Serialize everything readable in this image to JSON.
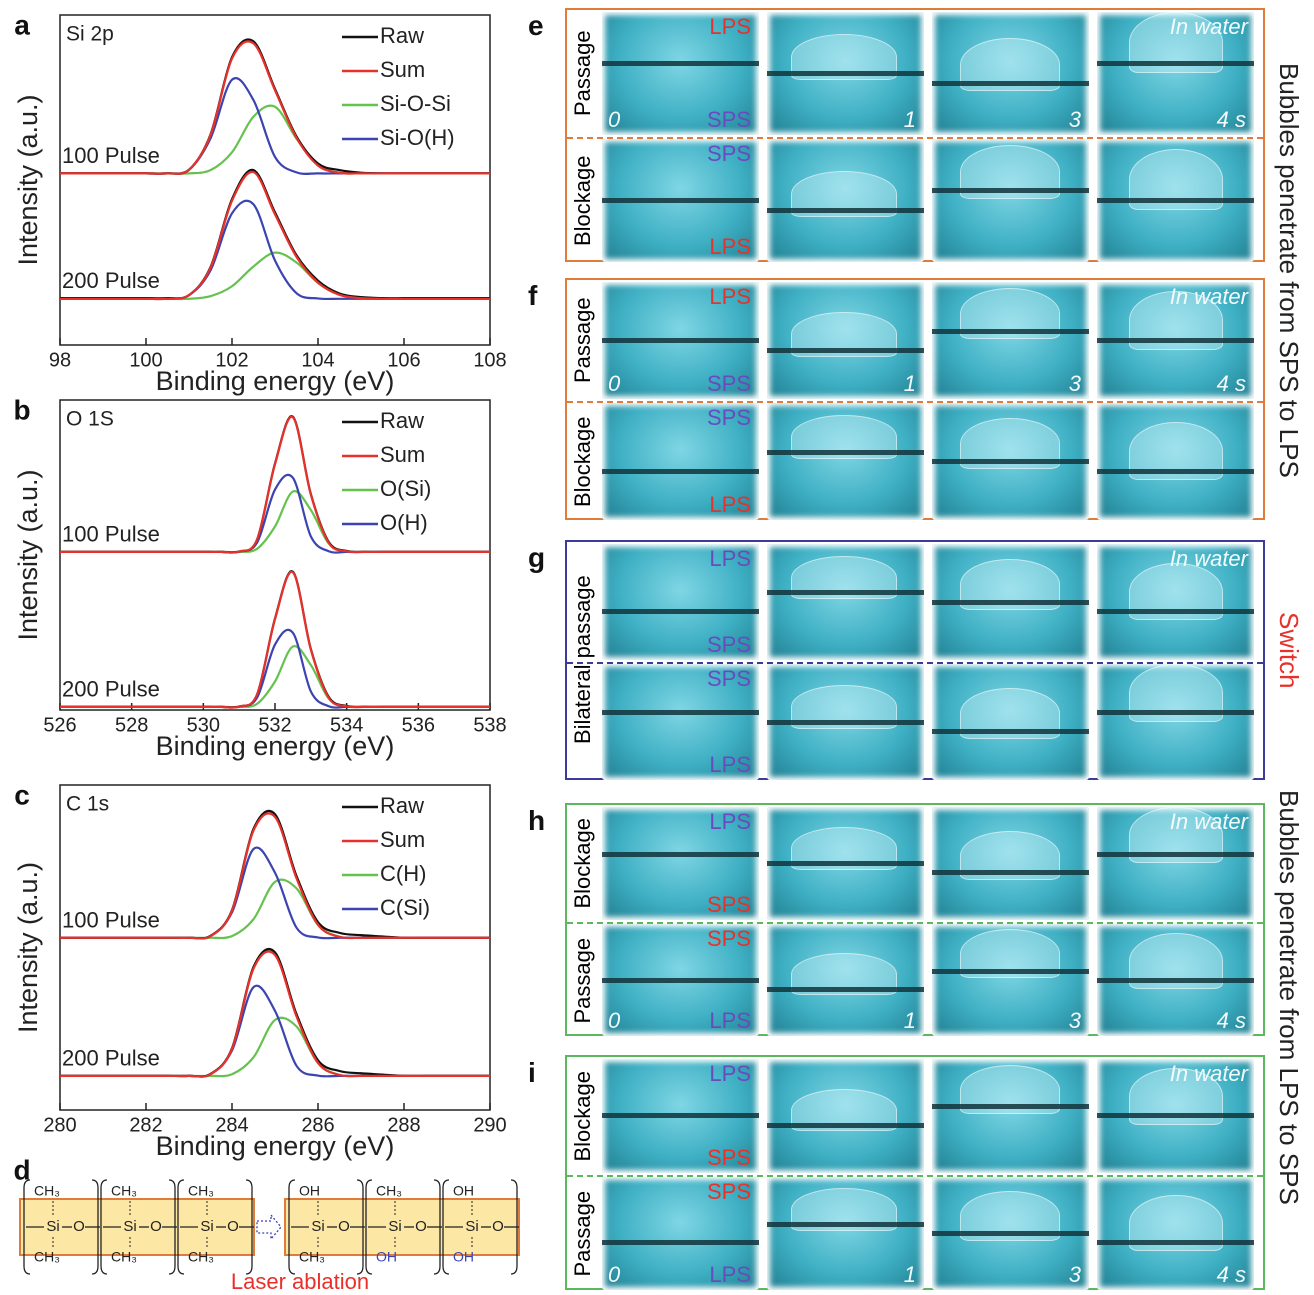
{
  "chart_data": [
    {
      "type": "line",
      "panel_label": "a",
      "inset_label": "Si 2p",
      "xlabel": "Binding energy (eV)",
      "ylabel": "Intensity (a.u.)",
      "xlim": [
        98,
        108
      ],
      "xticks": [
        98,
        100,
        102,
        104,
        106,
        108
      ],
      "ylim": [
        0,
        10
      ],
      "x": [
        98,
        98.5,
        99,
        99.5,
        100,
        100.5,
        101,
        101.5,
        102,
        102.5,
        103,
        103.5,
        104,
        104.5,
        105,
        105.5,
        106,
        106.5,
        107,
        107.5,
        108
      ],
      "series": [
        {
          "name": "Raw",
          "color": "#111111"
        },
        {
          "name": "Sum",
          "color": "#e8312a"
        },
        {
          "name": "Si-O-Si",
          "color": "#66c24f"
        },
        {
          "name": "Si-O(H)",
          "color": "#3b44b0"
        }
      ],
      "spectra": [
        {
          "label": "100 Pulse",
          "values": [
            [
              5.2,
              5.2,
              5.2,
              5.2,
              5.2,
              5.2,
              5.31,
              6.38,
              8.72,
              9.2,
              7.76,
              6.32,
              5.5,
              5.3,
              5.22,
              5.2,
              5.2,
              5.2,
              5.2,
              5.2,
              5.2
            ],
            [
              5.2,
              5.2,
              5.2,
              5.2,
              5.2,
              5.2,
              5.31,
              6.36,
              8.68,
              9.14,
              7.72,
              6.28,
              5.44,
              5.22,
              5.2,
              5.2,
              5.2,
              5.2,
              5.2,
              5.2,
              5.2
            ],
            [
              5.2,
              5.2,
              5.2,
              5.2,
              5.2,
              5.2,
              5.2,
              5.3,
              5.84,
              6.92,
              7.22,
              6.25,
              5.44,
              5.22,
              5.2,
              5.2,
              5.2,
              5.2,
              5.2,
              5.2,
              5.2
            ],
            [
              5.2,
              5.2,
              5.2,
              5.2,
              5.2,
              5.2,
              5.31,
              6.26,
              8.04,
              7.42,
              5.7,
              5.23,
              5.2,
              5.2,
              5.2,
              5.2,
              5.2,
              5.2,
              5.2,
              5.2,
              5.2
            ]
          ]
        },
        {
          "label": "200 Pulse",
          "values": [
            [
              1.42,
              1.42,
              1.42,
              1.42,
              1.42,
              1.42,
              1.51,
              2.36,
              4.42,
              5.3,
              4.02,
              2.72,
              1.95,
              1.56,
              1.45,
              1.42,
              1.42,
              1.42,
              1.42,
              1.42,
              1.42
            ],
            [
              1.4,
              1.4,
              1.4,
              1.4,
              1.4,
              1.4,
              1.51,
              2.34,
              4.37,
              5.24,
              3.96,
              2.67,
              1.89,
              1.52,
              1.42,
              1.4,
              1.4,
              1.4,
              1.4,
              1.4,
              1.4
            ],
            [
              1.4,
              1.4,
              1.4,
              1.4,
              1.4,
              1.4,
              1.4,
              1.48,
              1.78,
              2.38,
              2.8,
              2.5,
              1.88,
              1.52,
              1.42,
              1.4,
              1.4,
              1.4,
              1.4,
              1.4,
              1.4
            ],
            [
              1.4,
              1.4,
              1.4,
              1.4,
              1.4,
              1.4,
              1.51,
              2.26,
              3.99,
              4.26,
              2.56,
              1.57,
              1.41,
              1.4,
              1.4,
              1.4,
              1.4,
              1.4,
              1.4,
              1.4,
              1.4
            ]
          ]
        }
      ]
    },
    {
      "type": "line",
      "panel_label": "b",
      "inset_label": "O 1S",
      "xlabel": "Binding energy (eV)",
      "ylabel": "Intensity (a.u.)",
      "xlim": [
        526,
        538
      ],
      "xticks": [
        526,
        528,
        530,
        532,
        534,
        536,
        538
      ],
      "ylim": [
        0,
        10
      ],
      "x": [
        526,
        526.5,
        527,
        527.5,
        528,
        528.5,
        529,
        529.5,
        530,
        530.5,
        531,
        531.5,
        532,
        532.5,
        533,
        533.5,
        534,
        534.5,
        535,
        535.5,
        536,
        536.5,
        537,
        537.5,
        538
      ],
      "series": [
        {
          "name": "Raw",
          "color": "#111111"
        },
        {
          "name": "Sum",
          "color": "#e8312a"
        },
        {
          "name": "O(Si)",
          "color": "#66c24f"
        },
        {
          "name": "O(H)",
          "color": "#3b44b0"
        }
      ],
      "spectra": [
        {
          "label": "100 Pulse",
          "values": [
            [
              5.1,
              5.1,
              5.1,
              5.1,
              5.1,
              5.1,
              5.1,
              5.1,
              5.1,
              5.1,
              5.11,
              5.5,
              7.95,
              9.46,
              6.97,
              5.42,
              5.13,
              5.1,
              5.1,
              5.1,
              5.1,
              5.1,
              5.1,
              5.1,
              5.1
            ],
            [
              5.1,
              5.1,
              5.1,
              5.1,
              5.1,
              5.1,
              5.1,
              5.1,
              5.1,
              5.1,
              5.11,
              5.5,
              7.93,
              9.44,
              6.95,
              5.39,
              5.12,
              5.1,
              5.1,
              5.1,
              5.1,
              5.1,
              5.1,
              5.1,
              5.1
            ],
            [
              5.1,
              5.1,
              5.1,
              5.1,
              5.1,
              5.1,
              5.1,
              5.1,
              5.1,
              5.1,
              5.1,
              5.2,
              5.92,
              7.05,
              6.45,
              5.37,
              5.12,
              5.1,
              5.1,
              5.1,
              5.1,
              5.1,
              5.1,
              5.1,
              5.1
            ],
            [
              5.1,
              5.1,
              5.1,
              5.1,
              5.1,
              5.1,
              5.1,
              5.1,
              5.1,
              5.1,
              5.11,
              5.4,
              7.11,
              7.49,
              5.6,
              5.12,
              5.1,
              5.1,
              5.1,
              5.1,
              5.1,
              5.1,
              5.1,
              5.1,
              5.1
            ]
          ]
        },
        {
          "label": "200 Pulse",
          "values": [
            [
              0.1,
              0.1,
              0.1,
              0.1,
              0.1,
              0.1,
              0.1,
              0.1,
              0.1,
              0.1,
              0.11,
              0.5,
              2.95,
              4.46,
              1.97,
              0.42,
              0.13,
              0.1,
              0.1,
              0.1,
              0.1,
              0.1,
              0.1,
              0.1,
              0.1
            ],
            [
              0.1,
              0.1,
              0.1,
              0.1,
              0.1,
              0.1,
              0.1,
              0.1,
              0.1,
              0.1,
              0.11,
              0.5,
              2.93,
              4.44,
              1.95,
              0.39,
              0.12,
              0.1,
              0.1,
              0.1,
              0.1,
              0.1,
              0.1,
              0.1,
              0.1
            ],
            [
              0.1,
              0.1,
              0.1,
              0.1,
              0.1,
              0.1,
              0.1,
              0.1,
              0.1,
              0.1,
              0.1,
              0.2,
              0.92,
              2.05,
              1.45,
              0.37,
              0.12,
              0.1,
              0.1,
              0.1,
              0.1,
              0.1,
              0.1,
              0.1,
              0.1
            ],
            [
              0.1,
              0.1,
              0.1,
              0.1,
              0.1,
              0.1,
              0.1,
              0.1,
              0.1,
              0.1,
              0.11,
              0.4,
              2.11,
              2.49,
              0.6,
              0.12,
              0.1,
              0.1,
              0.1,
              0.1,
              0.1,
              0.1,
              0.1,
              0.1,
              0.1
            ]
          ]
        }
      ]
    },
    {
      "type": "line",
      "panel_label": "c",
      "inset_label": "C 1s",
      "xlabel": "Binding energy (eV)",
      "ylabel": "Intensity (a.u.)",
      "xlim": [
        280,
        290
      ],
      "xticks": [
        280,
        282,
        284,
        286,
        288,
        290
      ],
      "ylim": [
        0,
        10
      ],
      "x": [
        280,
        280.5,
        281,
        281.5,
        282,
        282.5,
        283,
        283.5,
        284,
        284.5,
        285,
        285.5,
        286,
        286.5,
        287,
        287.5,
        288,
        288.5,
        289,
        289.5,
        290
      ],
      "series": [
        {
          "name": "Raw",
          "color": "#111111"
        },
        {
          "name": "Sum",
          "color": "#e8312a"
        },
        {
          "name": "C(H)",
          "color": "#66c24f"
        },
        {
          "name": "C(Si)",
          "color": "#3b44b0"
        }
      ],
      "spectra": [
        {
          "label": "100 Pulse",
          "values": [
            [
              5.3,
              5.3,
              5.3,
              5.3,
              5.3,
              5.3,
              5.3,
              5.36,
              6.15,
              8.65,
              9.1,
              7.2,
              5.78,
              5.45,
              5.38,
              5.34,
              5.3,
              5.3,
              5.3,
              5.3,
              5.3
            ],
            [
              5.3,
              5.3,
              5.3,
              5.3,
              5.3,
              5.3,
              5.3,
              5.35,
              6.13,
              8.6,
              9.02,
              7.13,
              5.7,
              5.33,
              5.3,
              5.3,
              5.3,
              5.3,
              5.3,
              5.3,
              5.3
            ],
            [
              5.3,
              5.3,
              5.3,
              5.3,
              5.3,
              5.3,
              5.3,
              5.3,
              5.35,
              5.87,
              7.02,
              6.82,
              5.69,
              5.33,
              5.3,
              5.3,
              5.3,
              5.3,
              5.3,
              5.3,
              5.3
            ],
            [
              5.3,
              5.3,
              5.3,
              5.3,
              5.3,
              5.3,
              5.3,
              5.35,
              6.08,
              8.03,
              7.3,
              5.61,
              5.31,
              5.3,
              5.3,
              5.3,
              5.3,
              5.3,
              5.3,
              5.3,
              5.3
            ]
          ]
        },
        {
          "label": "200 Pulse",
          "values": [
            [
              1.05,
              1.05,
              1.05,
              1.05,
              1.05,
              1.05,
              1.05,
              1.11,
              1.9,
              4.4,
              4.85,
              2.95,
              1.53,
              1.2,
              1.13,
              1.09,
              1.05,
              1.05,
              1.05,
              1.05,
              1.05
            ],
            [
              1.05,
              1.05,
              1.05,
              1.05,
              1.05,
              1.05,
              1.05,
              1.1,
              1.88,
              4.35,
              4.77,
              2.88,
              1.45,
              1.08,
              1.05,
              1.05,
              1.05,
              1.05,
              1.05,
              1.05,
              1.05
            ],
            [
              1.05,
              1.05,
              1.05,
              1.05,
              1.05,
              1.05,
              1.05,
              1.05,
              1.1,
              1.62,
              2.77,
              2.57,
              1.44,
              1.08,
              1.05,
              1.05,
              1.05,
              1.05,
              1.05,
              1.05,
              1.05
            ],
            [
              1.05,
              1.05,
              1.05,
              1.05,
              1.05,
              1.05,
              1.05,
              1.1,
              1.83,
              3.78,
              3.05,
              1.36,
              1.06,
              1.05,
              1.05,
              1.05,
              1.05,
              1.05,
              1.05,
              1.05,
              1.05
            ]
          ]
        }
      ]
    }
  ],
  "structure": {
    "label": "d",
    "caption": "Laser ablation",
    "before": [
      {
        "top": {
          "text": "CH₃",
          "color": "#222222"
        },
        "atom": "Si",
        "link": "O",
        "bottom": {
          "text": "CH₃",
          "color": "#222222"
        }
      },
      {
        "top": {
          "text": "CH₃",
          "color": "#222222"
        },
        "atom": "Si",
        "link": "O",
        "bottom": {
          "text": "CH₃",
          "color": "#222222"
        }
      },
      {
        "top": {
          "text": "CH₃",
          "color": "#222222"
        },
        "atom": "Si",
        "link": "O",
        "bottom": {
          "text": "CH₃",
          "color": "#222222"
        }
      }
    ],
    "after": [
      {
        "top": {
          "text": "OH",
          "color": "#222222"
        },
        "atom": "Si",
        "link": "O",
        "bottom": {
          "text": "CH₃",
          "color": "#222222"
        }
      },
      {
        "top": {
          "text": "CH₃",
          "color": "#222222"
        },
        "atom": "Si",
        "link": "O",
        "bottom": {
          "text": "OH",
          "color": "#3b44b0"
        }
      },
      {
        "top": {
          "text": "OH",
          "color": "#222222"
        },
        "atom": "Si",
        "link": "O",
        "bottom": {
          "text": "OH",
          "color": "#3b44b0"
        }
      }
    ]
  },
  "panels": [
    {
      "label": "e",
      "color": "#e07b39",
      "water": "In water",
      "rows": [
        {
          "side": "Passage",
          "top": {
            "text": "LPS",
            "color": "#e8312a"
          },
          "bottom": {
            "text": "SPS",
            "color": "#6a4bbf"
          },
          "times": [
            "0",
            "1",
            "3",
            "4 s"
          ]
        },
        {
          "side": "Blockage",
          "top": {
            "text": "SPS",
            "color": "#6a4bbf"
          },
          "bottom": {
            "text": "LPS",
            "color": "#e8312a"
          }
        }
      ]
    },
    {
      "label": "f",
      "color": "#e07b39",
      "water": "In water",
      "rows": [
        {
          "side": "Passage",
          "top": {
            "text": "LPS",
            "color": "#e8312a"
          },
          "bottom": {
            "text": "SPS",
            "color": "#6a4bbf"
          },
          "times": [
            "0",
            "1",
            "3",
            "4 s"
          ]
        },
        {
          "side": "Blockage",
          "top": {
            "text": "SPS",
            "color": "#6a4bbf"
          },
          "bottom": {
            "text": "LPS",
            "color": "#e8312a"
          }
        }
      ]
    },
    {
      "label": "g",
      "color": "#3b3b9a",
      "water": "In water",
      "side": "Bilateral passage",
      "rows": [
        {
          "top": {
            "text": "LPS",
            "color": "#6a4bbf"
          },
          "bottom": {
            "text": "SPS",
            "color": "#6a4bbf"
          }
        },
        {
          "top": {
            "text": "SPS",
            "color": "#6a4bbf"
          },
          "bottom": {
            "text": "LPS",
            "color": "#6a4bbf"
          }
        }
      ]
    },
    {
      "label": "h",
      "color": "#5cb85c",
      "water": "In water",
      "rows": [
        {
          "side": "Blockage",
          "top": {
            "text": "LPS",
            "color": "#6a4bbf"
          },
          "bottom": {
            "text": "SPS",
            "color": "#e8312a"
          }
        },
        {
          "side": "Passage",
          "top": {
            "text": "SPS",
            "color": "#e8312a"
          },
          "bottom": {
            "text": "LPS",
            "color": "#6a4bbf"
          },
          "times": [
            "0",
            "1",
            "3",
            "4 s"
          ]
        }
      ]
    },
    {
      "label": "i",
      "color": "#5cb85c",
      "water": "In water",
      "rows": [
        {
          "side": "Blockage",
          "top": {
            "text": "LPS",
            "color": "#6a4bbf"
          },
          "bottom": {
            "text": "SPS",
            "color": "#e8312a"
          }
        },
        {
          "side": "Passage",
          "top": {
            "text": "SPS",
            "color": "#e8312a"
          },
          "bottom": {
            "text": "LPS",
            "color": "#6a4bbf"
          },
          "times": [
            "0",
            "1",
            "3",
            "4 s"
          ]
        }
      ]
    }
  ],
  "annotations": [
    {
      "text": "Bubbles penetrate from SPS to LPS",
      "color": "#222222"
    },
    {
      "text": "Switch",
      "color": "#e8312a"
    },
    {
      "text": "Bubbles penetrate from LPS to SPS",
      "color": "#222222"
    }
  ]
}
